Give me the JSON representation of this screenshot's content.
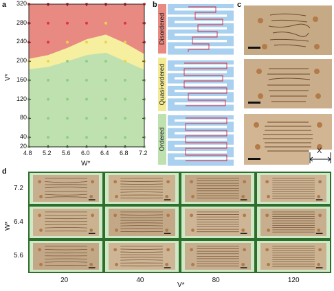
{
  "panels": {
    "a": "a",
    "b": "b",
    "c": "c",
    "d": "d"
  },
  "panel_a": {
    "xlabel": "W*",
    "ylabel": "V*",
    "xticks": [
      "4.8",
      "5.2",
      "5.6",
      "6.0",
      "6.4",
      "6.8",
      "7.2"
    ],
    "yticks": [
      "320",
      "280",
      "240",
      "200",
      "160",
      "120",
      "80",
      "40",
      "20"
    ],
    "colors": {
      "disordered": "#e98a82",
      "quasi": "#f6efa0",
      "ordered": "#bfe1b0",
      "dot_red": "#e0353a",
      "dot_yellow": "#e6d74a",
      "dot_green": "#8fcf82"
    }
  },
  "chart_data": {
    "type": "scatter",
    "xlabel": "W*",
    "ylabel": "V*",
    "xlim": [
      4.8,
      7.2
    ],
    "ylim": [
      20,
      320
    ],
    "x_values": [
      4.8,
      5.2,
      5.6,
      6.0,
      6.4,
      6.8,
      7.2
    ],
    "rows": [
      {
        "V": 320,
        "states": [
          "disordered",
          "disordered",
          "disordered",
          "disordered",
          "disordered",
          "disordered",
          "disordered"
        ]
      },
      {
        "V": 280,
        "states": [
          "disordered",
          "disordered",
          "disordered",
          "disordered",
          "quasi-ordered",
          "disordered",
          "disordered"
        ]
      },
      {
        "V": 240,
        "states": [
          "disordered",
          "disordered",
          "quasi-ordered",
          "quasi-ordered",
          "quasi-ordered",
          "quasi-ordered",
          "disordered"
        ]
      },
      {
        "V": 200,
        "states": [
          "quasi-ordered",
          "quasi-ordered",
          "ordered",
          "ordered",
          "ordered",
          "quasi-ordered",
          "quasi-ordered"
        ]
      },
      {
        "V": 160,
        "states": [
          "ordered",
          "ordered",
          "ordered",
          "ordered",
          "ordered",
          "ordered",
          "ordered"
        ]
      },
      {
        "V": 120,
        "states": [
          "ordered",
          "ordered",
          "ordered",
          "ordered",
          "ordered",
          "ordered",
          "ordered"
        ]
      },
      {
        "V": 80,
        "states": [
          "ordered",
          "ordered",
          "ordered",
          "ordered",
          "ordered",
          "ordered",
          "ordered"
        ]
      },
      {
        "V": 40,
        "states": [
          "ordered",
          "ordered",
          "ordered",
          "ordered",
          "ordered",
          "ordered",
          "ordered"
        ]
      },
      {
        "V": 20,
        "states": [
          "ordered",
          "ordered",
          "ordered",
          "ordered",
          "ordered",
          "ordered",
          "ordered"
        ]
      }
    ],
    "regions": [
      "Disordered",
      "Quasi-ordered",
      "Ordered"
    ]
  },
  "panel_b": {
    "labels": [
      "Disordered",
      "Quasi-ordered",
      "Ordered"
    ],
    "label_colors": [
      "#e98a82",
      "#f3ea95",
      "#bfe1b0"
    ],
    "channel_color": "#a9d0ee",
    "path_color": "#d8233a"
  },
  "panel_c": {
    "scale_label": "X"
  },
  "panel_d": {
    "ylabel": "W*",
    "xlabel": "V*",
    "row_labels": [
      "7.2",
      "6.4",
      "5.6"
    ],
    "col_labels": [
      "20",
      "40",
      "80",
      "120"
    ],
    "frame_color": "#2c6e2c",
    "cell_bg": "#cfe8c5"
  }
}
